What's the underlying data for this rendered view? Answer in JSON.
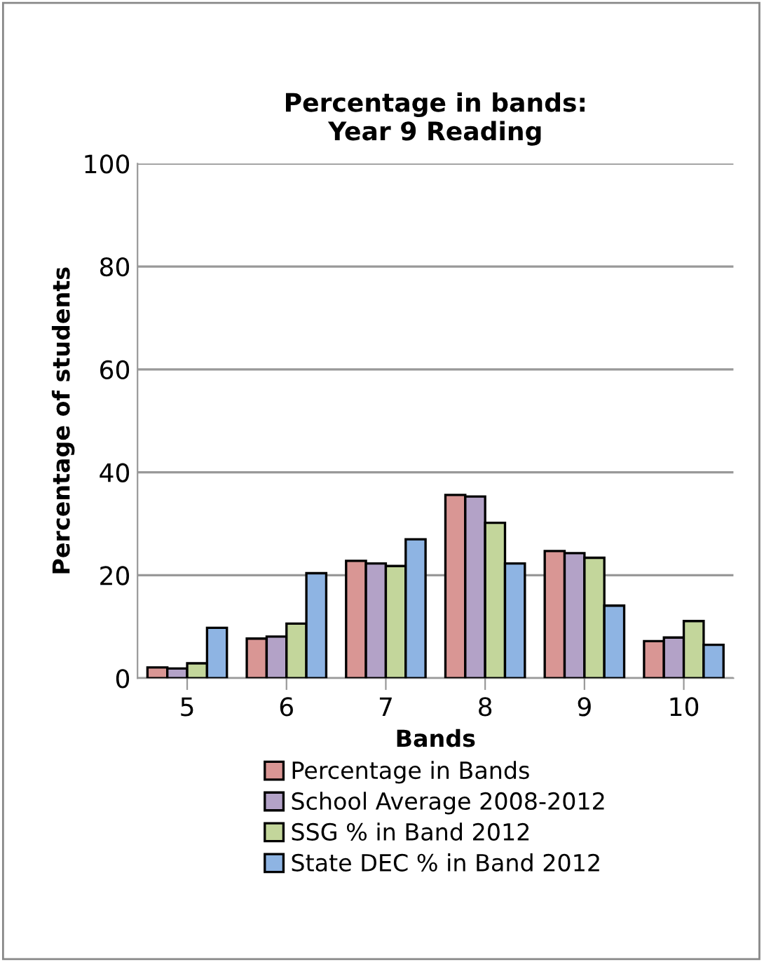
{
  "chart_data": {
    "type": "bar",
    "title": "Percentage in bands:\nYear 9 Reading",
    "xlabel": "Bands",
    "ylabel": "Percentage of students",
    "categories": [
      "5",
      "6",
      "7",
      "8",
      "9",
      "10"
    ],
    "series": [
      {
        "name": "Percentage in Bands",
        "color": "#d99694",
        "values": [
          2.1,
          7.7,
          22.8,
          35.6,
          24.7,
          7.2
        ]
      },
      {
        "name": "School Average 2008-2012",
        "color": "#b3a2c7",
        "values": [
          1.9,
          8.1,
          22.3,
          35.3,
          24.3,
          7.9
        ]
      },
      {
        "name": "SSG % in Band 2012",
        "color": "#c3d69b",
        "values": [
          2.9,
          10.6,
          21.8,
          30.2,
          23.4,
          11.1
        ]
      },
      {
        "name": "State DEC % in Band 2012",
        "color": "#8eb4e3",
        "values": [
          9.8,
          20.4,
          27.0,
          22.3,
          14.1,
          6.5
        ]
      }
    ],
    "ylim": [
      0,
      100
    ],
    "yticks": [
      0,
      20,
      40,
      60,
      80,
      100
    ],
    "grid": "y",
    "legend": "bottom"
  }
}
